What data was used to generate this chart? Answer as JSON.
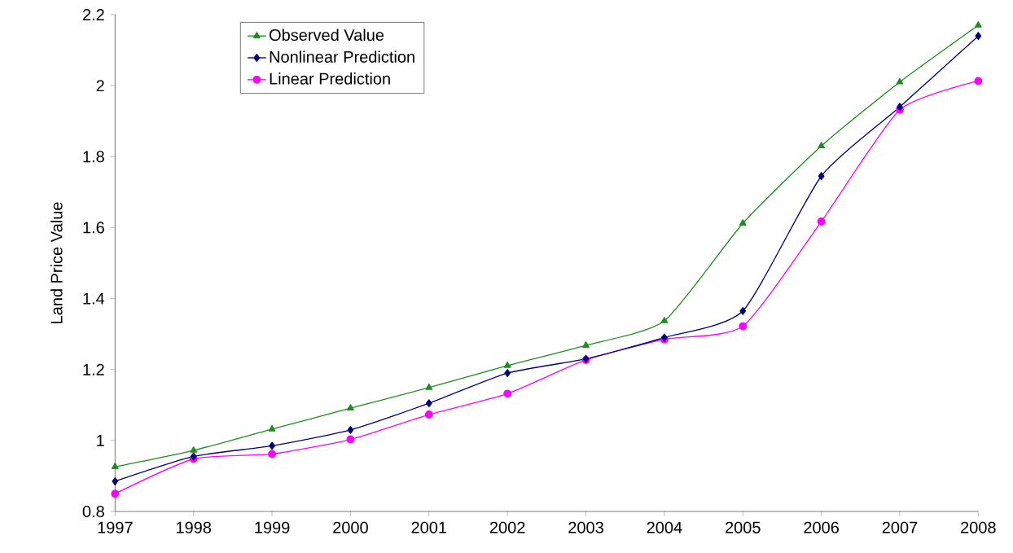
{
  "chart_data": {
    "type": "line",
    "ylabel": "Land Price Value",
    "x": [
      1997,
      1998,
      1999,
      2000,
      2001,
      2002,
      2003,
      2004,
      2005,
      2006,
      2007,
      2008
    ],
    "xlim": [
      1997,
      2008
    ],
    "xticks": [
      1997,
      1998,
      1999,
      2000,
      2001,
      2002,
      2003,
      2004,
      2005,
      2006,
      2007,
      2008
    ],
    "ylim": [
      0.8,
      2.2
    ],
    "yticks": [
      0.8,
      1,
      1.2,
      1.4,
      1.6,
      1.8,
      2,
      2.2
    ],
    "legend": "top left",
    "grid": false,
    "series": [
      {
        "name": "Observed Value",
        "color": "#1f8c1f",
        "marker": "triangle",
        "values": [
          0.926,
          0.972,
          1.032,
          1.091,
          1.149,
          1.211,
          1.268,
          1.337,
          1.612,
          1.83,
          2.01,
          2.17
        ]
      },
      {
        "name": "Nonlinear Prediction",
        "color": "#000080",
        "marker": "diamond",
        "values": [
          0.885,
          0.955,
          0.985,
          1.03,
          1.105,
          1.19,
          1.23,
          1.29,
          1.365,
          1.745,
          1.94,
          2.14
        ]
      },
      {
        "name": "Linear Prediction",
        "color": "#ff00ff",
        "marker": "circle",
        "values": [
          0.85,
          0.948,
          0.962,
          1.003,
          1.073,
          1.132,
          1.227,
          1.285,
          1.322,
          1.617,
          1.932,
          2.013
        ]
      }
    ]
  }
}
